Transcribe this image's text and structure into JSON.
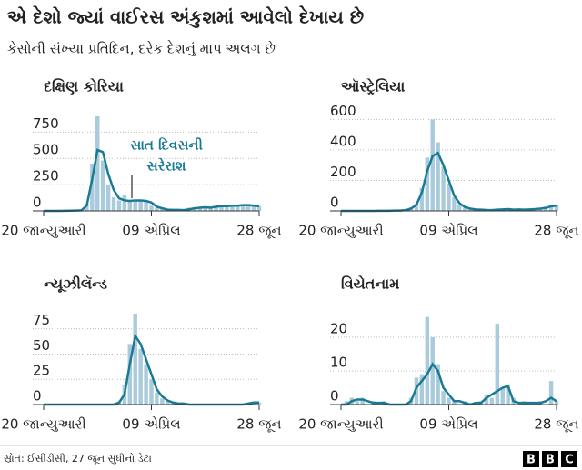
{
  "title": "એ દેશો જ્યાં વાઈરસ અંકુશમાં આવેલો દેખાય છે",
  "subtitle": "કેસોની સંખ્યા પ્રતિદિન, દરેક દેશનું માપ અલગ છે",
  "source": "સ્રોત: ઈસીડીસી, 27 જૂન સુધીનો ડેટા",
  "logo": [
    "B",
    "B",
    "C"
  ],
  "chart_data": [
    {
      "type": "combo",
      "title": "દક્ષિણ કોરિયા",
      "annotation": [
        "સાત દિવસની",
        "સરેરાશ"
      ],
      "x": [
        0,
        4,
        8,
        12,
        16,
        20,
        24,
        28,
        32,
        36,
        40,
        44,
        48,
        52,
        56,
        60,
        64,
        68,
        72,
        76,
        80,
        84,
        88,
        92,
        96,
        100,
        104,
        108,
        112,
        116,
        120,
        124,
        128,
        132,
        136,
        140,
        144,
        148,
        152,
        156,
        160
      ],
      "xlim": [
        0,
        160
      ],
      "xticks": [
        {
          "value": 0,
          "label": "20 જાન્યુઆરી"
        },
        {
          "value": 80,
          "label": "09 એપ્રિલ"
        },
        {
          "value": 160,
          "label": "28 જૂન"
        }
      ],
      "ylim": [
        0,
        900
      ],
      "yticks": [
        0,
        250,
        500,
        750
      ],
      "grid": true,
      "series": [
        {
          "type": "bar",
          "color": "#a9cbdc",
          "values": [
            0,
            0,
            0,
            0,
            1,
            3,
            2,
            6,
            70,
            450,
            900,
            480,
            250,
            130,
            100,
            150,
            90,
            105,
            100,
            90,
            50,
            30,
            20,
            10,
            8,
            10,
            4,
            30,
            20,
            35,
            30,
            40,
            35,
            50,
            40,
            45,
            50,
            60,
            50,
            40,
            45
          ]
        },
        {
          "type": "line",
          "color": "#1a7a94",
          "values": [
            0,
            0,
            0,
            0,
            1,
            2,
            3,
            5,
            50,
            300,
            580,
            560,
            350,
            200,
            120,
            100,
            95,
            100,
            100,
            95,
            80,
            40,
            25,
            12,
            10,
            10,
            8,
            15,
            25,
            30,
            35,
            30,
            40,
            45,
            45,
            50,
            50,
            55,
            55,
            50,
            45
          ]
        }
      ]
    },
    {
      "type": "combo",
      "title": "ઑસ્ટ્રેલિયા",
      "x": [
        0,
        4,
        8,
        12,
        16,
        20,
        24,
        28,
        32,
        36,
        40,
        44,
        48,
        52,
        56,
        60,
        64,
        68,
        72,
        76,
        80,
        84,
        88,
        92,
        96,
        100,
        104,
        108,
        112,
        116,
        120,
        124,
        128,
        132,
        136,
        140,
        144,
        148,
        152,
        156,
        160
      ],
      "xlim": [
        0,
        160
      ],
      "xticks": [
        {
          "value": 0,
          "label": "20 જાન્યુઆરી"
        },
        {
          "value": 80,
          "label": "09 એપ્રિલ"
        },
        {
          "value": 160,
          "label": "28 જૂન"
        }
      ],
      "ylim": [
        0,
        620
      ],
      "yticks": [
        0,
        200,
        400,
        600
      ],
      "grid": true,
      "series": [
        {
          "type": "bar",
          "color": "#a9cbdc",
          "values": [
            0,
            0,
            0,
            0,
            0,
            1,
            0,
            2,
            0,
            3,
            2,
            1,
            8,
            25,
            50,
            150,
            350,
            600,
            450,
            290,
            180,
            90,
            40,
            20,
            12,
            8,
            10,
            4,
            6,
            10,
            8,
            15,
            6,
            12,
            9,
            11,
            14,
            18,
            25,
            35,
            40
          ]
        },
        {
          "type": "line",
          "color": "#1a7a94",
          "values": [
            0,
            0,
            0,
            0,
            0,
            0,
            0,
            1,
            1,
            1,
            2,
            2,
            5,
            15,
            40,
            120,
            260,
            360,
            380,
            300,
            200,
            100,
            50,
            25,
            15,
            10,
            8,
            6,
            5,
            8,
            10,
            12,
            8,
            10,
            8,
            10,
            12,
            15,
            20,
            30,
            35
          ]
        }
      ]
    },
    {
      "type": "combo",
      "title": "ન્યૂઝીલૅન્ડ",
      "x": [
        0,
        4,
        8,
        12,
        16,
        20,
        24,
        28,
        32,
        36,
        40,
        44,
        48,
        52,
        56,
        60,
        64,
        68,
        72,
        76,
        80,
        84,
        88,
        92,
        96,
        100,
        104,
        108,
        112,
        116,
        120,
        124,
        128,
        132,
        136,
        140,
        144,
        148,
        152,
        156,
        160
      ],
      "xlim": [
        0,
        160
      ],
      "xticks": [
        {
          "value": 0,
          "label": "20 જાન્યુઆરી"
        },
        {
          "value": 80,
          "label": "09 એપ્રિલ"
        },
        {
          "value": 160,
          "label": "28 જૂન"
        }
      ],
      "ylim": [
        0,
        90
      ],
      "yticks": [
        0,
        25,
        50,
        75
      ],
      "grid": true,
      "series": [
        {
          "type": "bar",
          "color": "#a9cbdc",
          "values": [
            0,
            0,
            0,
            0,
            0,
            0,
            0,
            0,
            0,
            0,
            0,
            0,
            0,
            0,
            3,
            20,
            60,
            90,
            55,
            40,
            25,
            12,
            6,
            3,
            2,
            1,
            0,
            1,
            0,
            0,
            0,
            0,
            0,
            0,
            0,
            0,
            0,
            0,
            2,
            3,
            2
          ]
        },
        {
          "type": "line",
          "color": "#1a7a94",
          "values": [
            0,
            0,
            0,
            0,
            0,
            0,
            0,
            0,
            0,
            0,
            0,
            0,
            0,
            0,
            2,
            10,
            40,
            68,
            60,
            45,
            30,
            15,
            8,
            4,
            2,
            1,
            1,
            0,
            0,
            0,
            0,
            0,
            0,
            0,
            0,
            0,
            0,
            0,
            1,
            2,
            2
          ]
        }
      ]
    },
    {
      "type": "combo",
      "title": "વિયેતનામ",
      "x": [
        0,
        4,
        8,
        12,
        16,
        20,
        24,
        28,
        32,
        36,
        40,
        44,
        48,
        52,
        56,
        60,
        64,
        68,
        72,
        76,
        80,
        84,
        88,
        92,
        96,
        100,
        104,
        108,
        112,
        116,
        120,
        124,
        128,
        132,
        136,
        140,
        144,
        148,
        152,
        156,
        160
      ],
      "xlim": [
        0,
        160
      ],
      "xticks": [
        {
          "value": 0,
          "label": "20 જાન્યુઆરી"
        },
        {
          "value": 80,
          "label": "09 એપ્રિલ"
        },
        {
          "value": 160,
          "label": "28 જૂન"
        }
      ],
      "ylim": [
        0,
        27
      ],
      "yticks": [
        0,
        10,
        20
      ],
      "grid": true,
      "series": [
        {
          "type": "bar",
          "color": "#a9cbdc",
          "values": [
            0,
            1,
            2,
            1,
            2,
            0,
            1,
            0,
            1,
            0,
            0,
            0,
            0,
            2,
            8,
            9,
            26,
            20,
            12,
            4,
            2,
            1,
            0,
            1,
            0,
            0,
            1,
            3,
            2,
            24,
            5,
            6,
            2,
            0,
            1,
            0,
            0,
            1,
            0,
            7,
            1
          ]
        },
        {
          "type": "line",
          "color": "#1a7a94",
          "values": [
            0,
            0,
            1,
            1.5,
            1.5,
            1,
            0.5,
            0.5,
            0.5,
            0,
            0,
            0,
            0,
            1,
            5,
            7,
            9,
            12,
            10,
            5,
            3,
            1,
            1,
            0.5,
            0,
            0.5,
            0.5,
            2,
            3,
            4,
            5,
            5.5,
            1,
            0.5,
            0.5,
            0.5,
            0.5,
            0.5,
            1,
            2,
            1
          ]
        }
      ]
    }
  ]
}
